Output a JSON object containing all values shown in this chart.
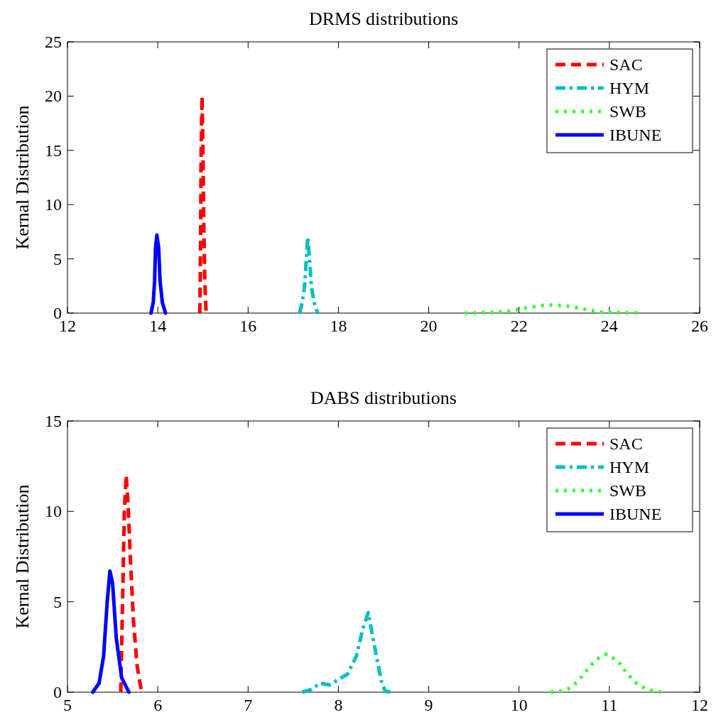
{
  "chart_data": [
    {
      "type": "line",
      "title": "DRMS distributions",
      "ylabel": "Kernal Distribution",
      "xlim": [
        12,
        26
      ],
      "xticks": [
        12,
        14,
        16,
        18,
        20,
        22,
        24,
        26
      ],
      "ylim": [
        0,
        25
      ],
      "yticks": [
        0,
        5,
        10,
        15,
        20,
        25
      ],
      "legend": "top right",
      "grid": false,
      "series": [
        {
          "name": "SAC",
          "color": "#ff0000",
          "line_style": "dashed",
          "x": [
            14.93,
            14.94,
            14.95,
            14.96,
            14.98,
            15.0,
            15.02,
            15.04,
            15.07
          ],
          "values": [
            0,
            3,
            8,
            15,
            20,
            15,
            8,
            3,
            0
          ]
        },
        {
          "name": "HYM",
          "color": "#00bfbf",
          "line_style": "dashdot",
          "x": [
            17.14,
            17.2,
            17.25,
            17.29,
            17.32,
            17.36,
            17.4,
            17.46,
            17.54
          ],
          "values": [
            0,
            1,
            2.5,
            5,
            7,
            5,
            2.5,
            1,
            0
          ]
        },
        {
          "name": "SWB",
          "color": "#33ff33",
          "line_style": "dotted",
          "x": [
            20.8,
            21.4,
            21.8,
            22.2,
            22.6,
            23.0,
            23.4,
            23.8,
            24.2,
            24.7
          ],
          "values": [
            0,
            0.05,
            0.2,
            0.5,
            0.75,
            0.7,
            0.4,
            0.1,
            0.05,
            0
          ]
        },
        {
          "name": "IBUNE",
          "color": "#0000ff",
          "line_style": "solid",
          "x": [
            13.85,
            13.9,
            13.93,
            13.95,
            13.98,
            14.02,
            14.05,
            14.1,
            14.17
          ],
          "values": [
            0,
            1,
            3,
            6,
            7.2,
            6,
            3,
            1,
            0
          ]
        }
      ]
    },
    {
      "type": "line",
      "title": "DABS distributions",
      "ylabel": "Kernal Distribution",
      "xlim": [
        5,
        12
      ],
      "xticks": [
        5,
        6,
        7,
        8,
        9,
        10,
        11,
        12
      ],
      "ylim": [
        0,
        15
      ],
      "yticks": [
        0,
        5,
        10,
        15
      ],
      "legend": "top right",
      "grid": false,
      "series": [
        {
          "name": "SAC",
          "color": "#ff0000",
          "line_style": "dashed",
          "x": [
            5.59,
            5.61,
            5.63,
            5.65,
            5.67,
            5.7,
            5.73,
            5.77,
            5.82
          ],
          "values": [
            0,
            5,
            10,
            12,
            10.5,
            7,
            4,
            1.5,
            0
          ]
        },
        {
          "name": "HYM",
          "color": "#00bfbf",
          "line_style": "dashdot",
          "x": [
            7.6,
            7.7,
            7.8,
            7.9,
            8.0,
            8.1,
            8.2,
            8.27,
            8.33,
            8.42,
            8.48,
            8.52,
            8.62
          ],
          "values": [
            0,
            0.15,
            0.5,
            0.4,
            0.7,
            1.0,
            2.0,
            3.5,
            4.4,
            2,
            0.5,
            0.05,
            0
          ]
        },
        {
          "name": "SWB",
          "color": "#33ff33",
          "line_style": "dotted",
          "x": [
            10.35,
            10.45,
            10.55,
            10.65,
            10.75,
            10.85,
            10.97,
            11.1,
            11.2,
            11.3,
            11.4,
            11.5,
            11.58
          ],
          "values": [
            0,
            0.05,
            0.2,
            0.6,
            1.2,
            1.8,
            2.1,
            1.7,
            1.0,
            0.5,
            0.2,
            0.05,
            0
          ]
        },
        {
          "name": "IBUNE",
          "color": "#0000ff",
          "line_style": "solid",
          "x": [
            5.28,
            5.35,
            5.4,
            5.44,
            5.47,
            5.5,
            5.54,
            5.6,
            5.68
          ],
          "values": [
            0,
            0.5,
            2,
            5,
            6.7,
            6,
            3,
            0.8,
            0
          ]
        }
      ]
    }
  ]
}
